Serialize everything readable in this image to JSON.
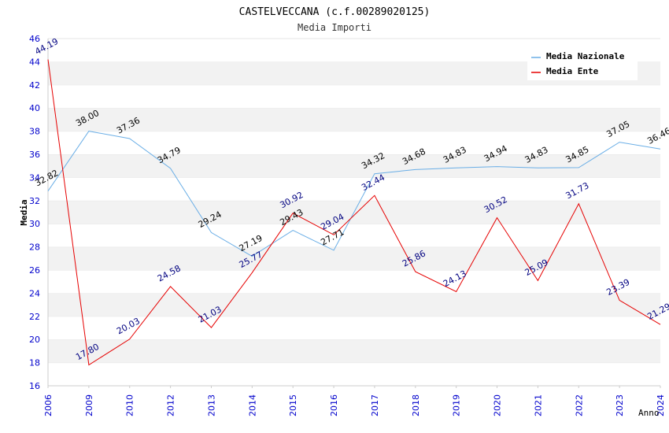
{
  "chart_data": {
    "type": "line",
    "title": "CASTELVECCANA (c.f.00289020125)",
    "subtitle": "Media Importi",
    "xlabel": "Anno",
    "ylabel": "Media",
    "ylim": [
      16,
      46
    ],
    "yticks": [
      16,
      18,
      20,
      22,
      24,
      26,
      28,
      30,
      32,
      34,
      36,
      38,
      40,
      42,
      44,
      46
    ],
    "categories": [
      "2006",
      "2009",
      "2010",
      "2012",
      "2013",
      "2014",
      "2015",
      "2016",
      "2017",
      "2018",
      "2019",
      "2020",
      "2021",
      "2022",
      "2023",
      "2024"
    ],
    "grid": "horizontal bands",
    "legend_position": "top-right",
    "series": [
      {
        "name": "Media Nazionale",
        "color": "#6aaee6",
        "label_color": "#000000",
        "values": [
          32.82,
          38.0,
          37.36,
          34.79,
          29.24,
          27.19,
          29.43,
          27.71,
          34.32,
          34.68,
          34.83,
          34.94,
          34.83,
          34.85,
          37.05,
          36.46
        ],
        "labels": [
          "32.82",
          "38.00",
          "37.36",
          "34.79",
          "29.24",
          "27.19",
          "29.43",
          "27.71",
          "34.32",
          "34.68",
          "34.83",
          "34.94",
          "34.83",
          "34.85",
          "37.05",
          "36.46"
        ]
      },
      {
        "name": "Media Ente",
        "color": "#e60000",
        "label_color": "#000080",
        "values": [
          44.19,
          17.8,
          20.03,
          24.58,
          21.03,
          25.77,
          30.92,
          29.04,
          32.44,
          25.86,
          24.13,
          30.52,
          25.09,
          31.73,
          23.39,
          21.29
        ],
        "labels": [
          "44.19",
          "17.80",
          "20.03",
          "24.58",
          "21.03",
          "25.77",
          "30.92",
          "29.04",
          "32.44",
          "25.86",
          "24.13",
          "30.52",
          "25.09",
          "31.73",
          "23.39",
          "21.29"
        ]
      }
    ]
  }
}
